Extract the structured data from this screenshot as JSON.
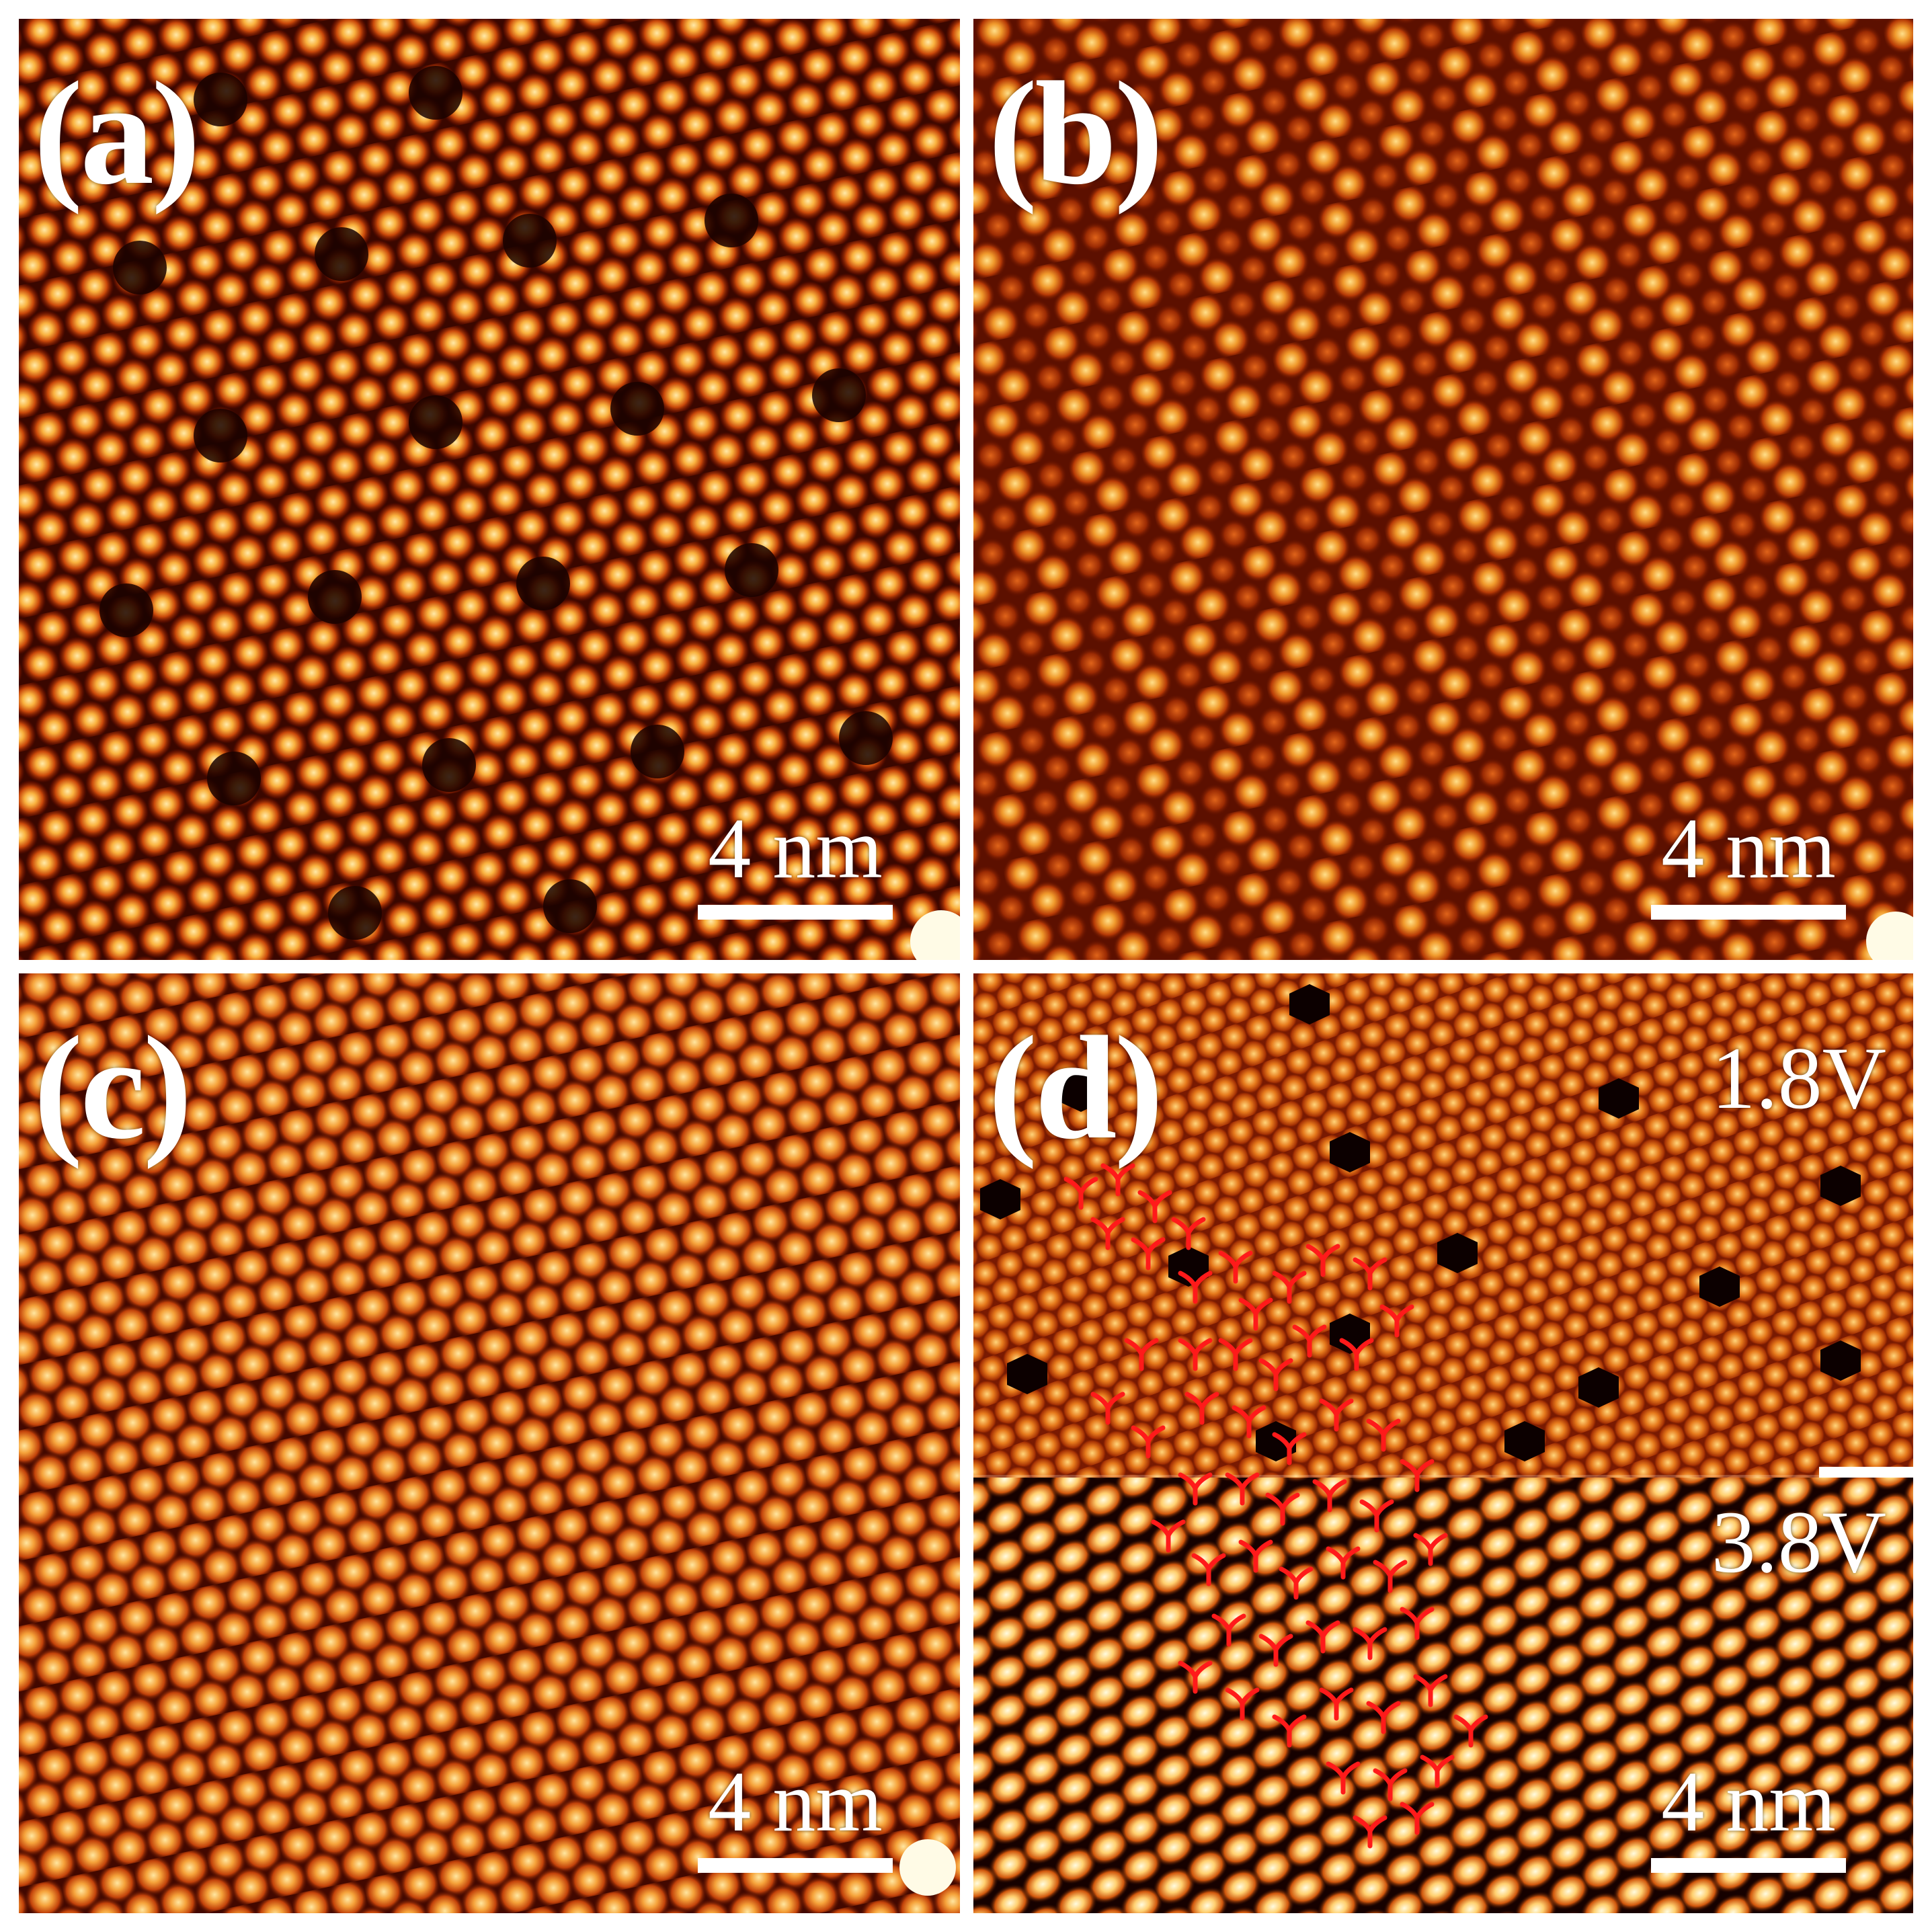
{
  "figure": {
    "background": "#ffffff",
    "colormap": [
      "#1c0200",
      "#6b1200",
      "#c44a05",
      "#f59a2a",
      "#ffe9a8"
    ],
    "overlay_color": "#ff1a1a",
    "panels": [
      {
        "id": "a",
        "label": "(a)",
        "scale_bar": "4 nm"
      },
      {
        "id": "b",
        "label": "(b)",
        "scale_bar": "4 nm"
      },
      {
        "id": "c",
        "label": "(c)",
        "scale_bar": "4 nm"
      },
      {
        "id": "d",
        "label": "(d)",
        "scale_bar": "4 nm",
        "top_bias": "1.8V",
        "bottom_bias": "3.8V"
      }
    ]
  }
}
